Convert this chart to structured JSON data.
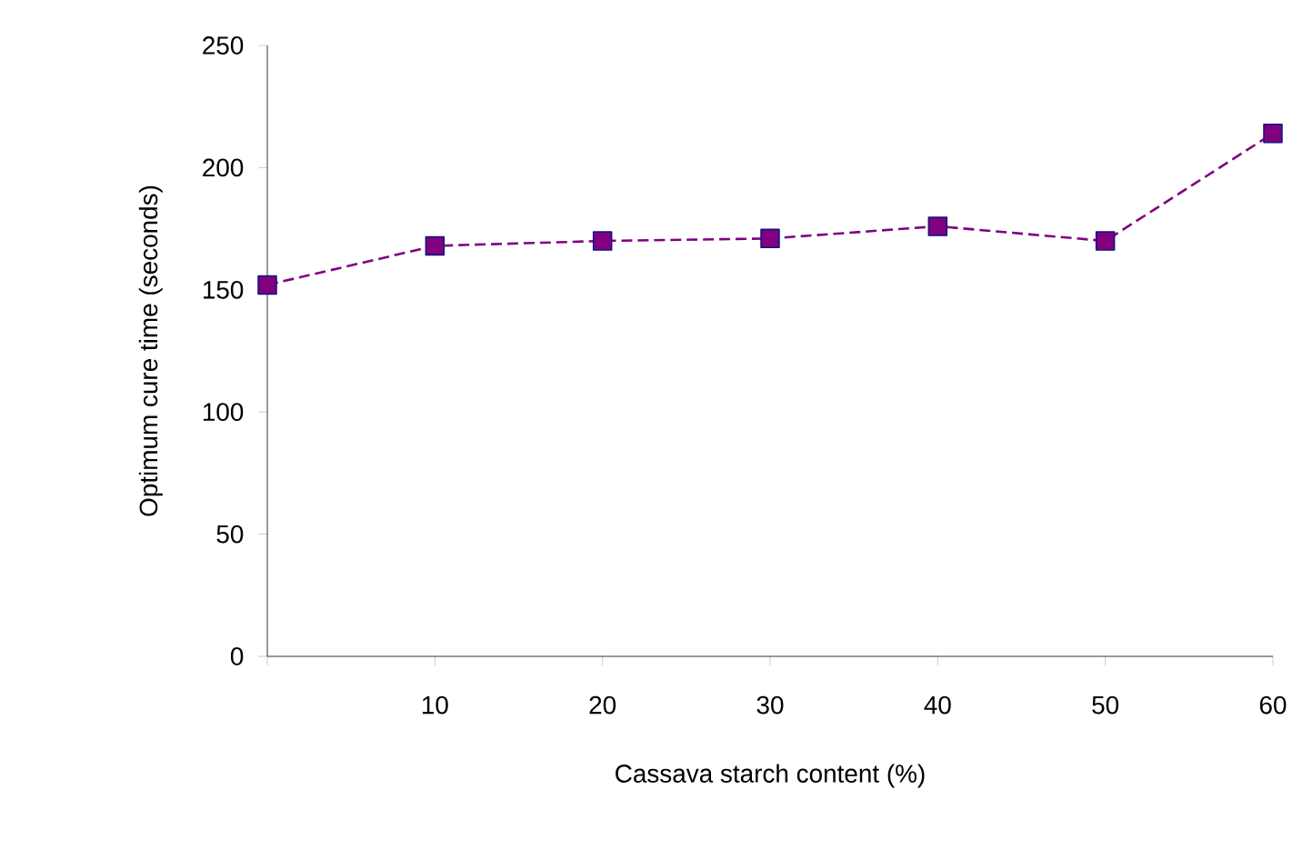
{
  "chart_data": {
    "type": "line",
    "xlabel": "Cassava starch content (%)",
    "ylabel": "Optimum cure time (seconds)",
    "x": [
      0,
      10,
      20,
      30,
      40,
      50,
      60
    ],
    "series": [
      {
        "color": "#800080",
        "values": [
          152,
          168,
          170,
          171,
          176,
          170,
          214
        ]
      }
    ],
    "xlim": [
      0,
      60
    ],
    "xticks": [
      {
        "value": 0,
        "label": null
      },
      10,
      20,
      30,
      40,
      50,
      60
    ],
    "ylim": [
      0,
      250
    ],
    "yticks": [
      0,
      50,
      100,
      150,
      200,
      250
    ],
    "grid": false,
    "marker": "square",
    "line_style": "dashed"
  }
}
